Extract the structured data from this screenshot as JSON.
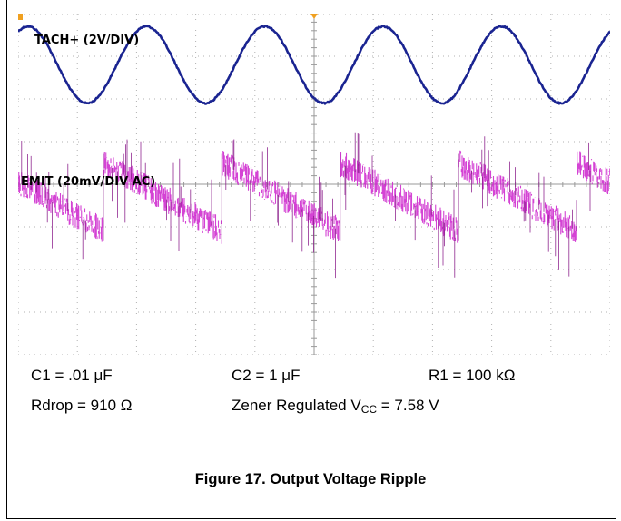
{
  "chart_data": {
    "type": "line",
    "title": "",
    "grid": true,
    "channels": [
      {
        "name": "TACH+ (2V/DIV)",
        "color": "#1a2491",
        "waveform": "sine",
        "period_div": 2.0,
        "amplitude_div": 0.9,
        "center_div": 1.2,
        "phase_at_left": "rising, approaching peak"
      },
      {
        "name": "EMIT (20mV/DIV AC)",
        "color": "#cc22cc",
        "waveform": "sawtooth",
        "period_div": 2.0,
        "ripple_pp_div": 1.6,
        "center_div": 4.3
      }
    ]
  },
  "annotations": {
    "c1": "C1 = .01 μF",
    "c2": "C2 = 1 μF",
    "r1": "R1 = 100 kΩ",
    "rdrop": "Rdrop = 910 Ω",
    "vcc_prefix": "Zener Regulated V",
    "vcc_sub": "CC",
    "vcc_suffix": " = 7.58 V"
  },
  "caption": "Figure 17. Output Voltage Ripple"
}
